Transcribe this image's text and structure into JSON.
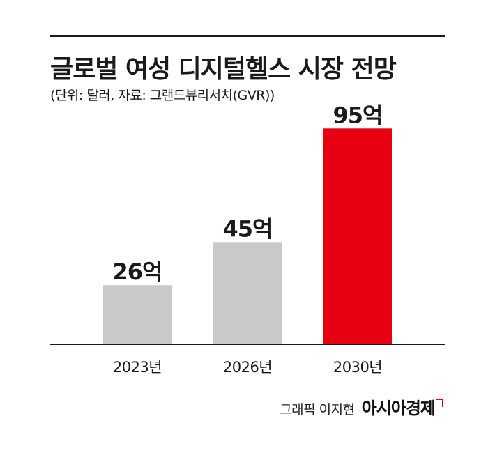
{
  "header": {
    "title": "글로벌 여성 디지털헬스 시장 전망",
    "subtitle": "(단위: 달러, 자료: 그랜드뷰리서치(GVR))"
  },
  "chart_data": {
    "type": "bar",
    "categories": [
      "2023년",
      "2026년",
      "2030년"
    ],
    "values": [
      26,
      45,
      95
    ],
    "value_labels": [
      "26억",
      "45억",
      "95억"
    ],
    "unit": "억 달러",
    "ylim": [
      0,
      100
    ],
    "grid": false,
    "colors": [
      "#c9c9c9",
      "#c9c9c9",
      "#e60012"
    ],
    "axis_color": "#1a1a1a"
  },
  "credit": {
    "author": "그래픽 이지현",
    "brand": "아시아경제"
  }
}
